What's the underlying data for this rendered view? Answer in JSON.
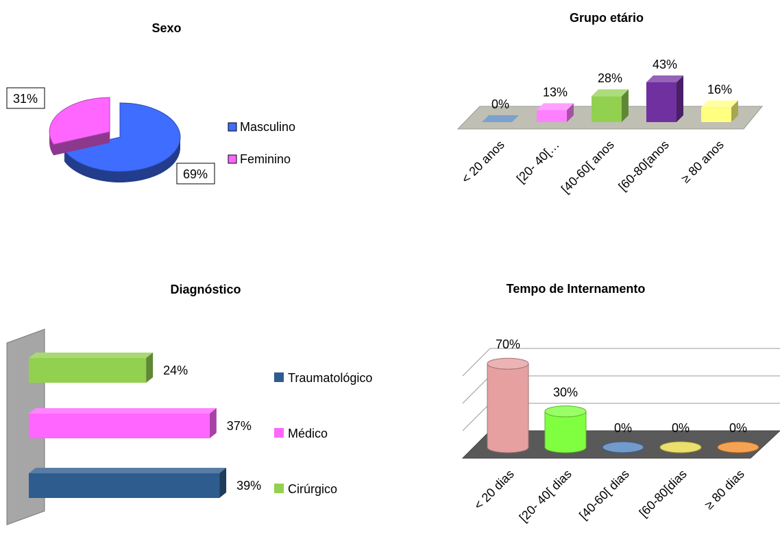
{
  "chart_data": [
    {
      "type": "pie",
      "title": "Sexo",
      "categories": [
        "Masculino",
        "Feminino"
      ],
      "values": [
        69,
        31
      ],
      "value_labels": [
        "69%",
        "31%"
      ],
      "colors": [
        "#3f6dff",
        "#ff66ff"
      ],
      "legend": "right"
    },
    {
      "type": "bar",
      "title": "Grupo etário",
      "categories": [
        "< 20 anos",
        "[20- 40[…",
        "[40-60[ anos",
        "[60-80[anos",
        "≥ 80 anos"
      ],
      "values": [
        0,
        13,
        28,
        43,
        16
      ],
      "value_labels": [
        "0%",
        "13%",
        "28%",
        "43%",
        "16%"
      ],
      "colors": [
        "#4f81bd",
        "#ff80ff",
        "#92d050",
        "#7030a0",
        "#ffff80"
      ]
    },
    {
      "type": "barh",
      "title": "Diagnóstico",
      "categories": [
        "Traumatológico",
        "Médico",
        "Cirúrgico"
      ],
      "values": [
        39,
        37,
        24
      ],
      "value_labels": [
        "39%",
        "37%",
        "24%"
      ],
      "colors": [
        "#2e5c8e",
        "#ff66ff",
        "#92d050"
      ],
      "legend": "right"
    },
    {
      "type": "cylinder",
      "title": "Tempo de Internamento",
      "categories": [
        "< 20 dias",
        "[20- 40[ dias",
        "[40-60[ dias",
        "[60-80[dias",
        "≥ 80 dias"
      ],
      "values": [
        70,
        30,
        0,
        0,
        0
      ],
      "value_labels": [
        "70%",
        "30%",
        "0%",
        "0%",
        "0%"
      ],
      "colors": [
        "#e6a0a0",
        "#80ff40",
        "#4f81bd",
        "#e6d84a",
        "#f28c28"
      ],
      "grid": true
    }
  ]
}
